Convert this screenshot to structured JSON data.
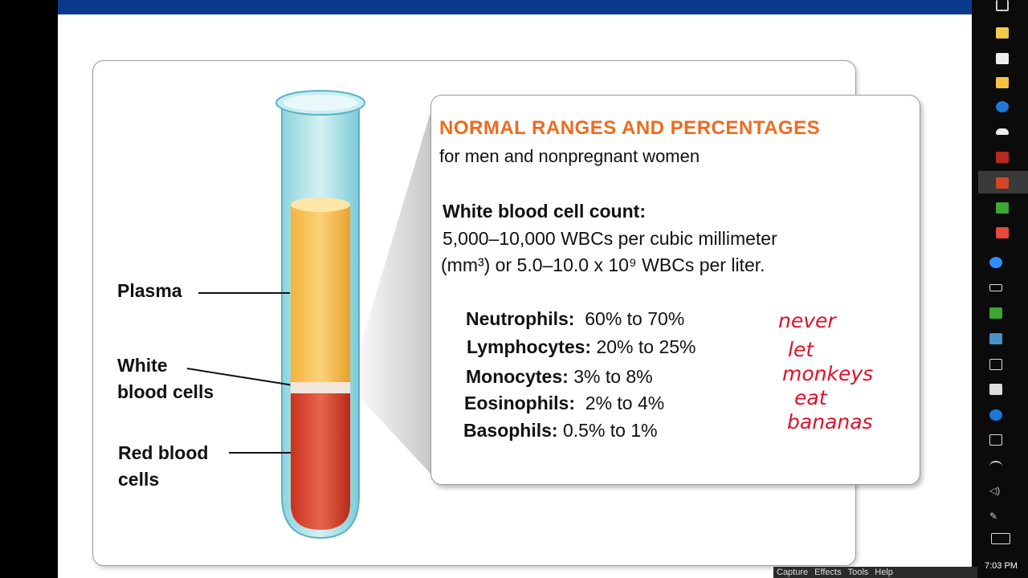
{
  "labels": {
    "plasma": "Plasma",
    "wbc": "White blood cells",
    "wbc_l1": "White",
    "wbc_l2": "blood cells",
    "rbc_l1": "Red blood",
    "rbc_l2": "cells"
  },
  "info": {
    "title": "NORMAL RANGES AND PERCENTAGES",
    "subtitle": "for men and nonpregnant women",
    "wbc_heading": "White blood cell count:",
    "wbc_line1": "5,000–10,000 WBCs per cubic millimeter",
    "wbc_line2": "(mm³) or 5.0–10.0 x 10⁹ WBCs per liter.",
    "differential": [
      {
        "name": "Neutrophils:",
        "range": "60% to 70%"
      },
      {
        "name": "Lymphocytes:",
        "range": "20% to 25%"
      },
      {
        "name": "Monocytes:",
        "range": "3% to 8%"
      },
      {
        "name": "Eosinophils:",
        "range": "2% to 4%"
      },
      {
        "name": "Basophils:",
        "range": "0.5% to 1%"
      }
    ]
  },
  "handwriting": [
    "never",
    "let",
    "monkeys",
    "eat",
    "bananas"
  ],
  "capture_menu": [
    "Capture",
    "Effects",
    "Tools",
    "Help"
  ],
  "clock": "7:03 PM",
  "colors": {
    "title": "#ef6a1f",
    "ink": "#e0102a",
    "topbar": "#0b3a8c"
  }
}
